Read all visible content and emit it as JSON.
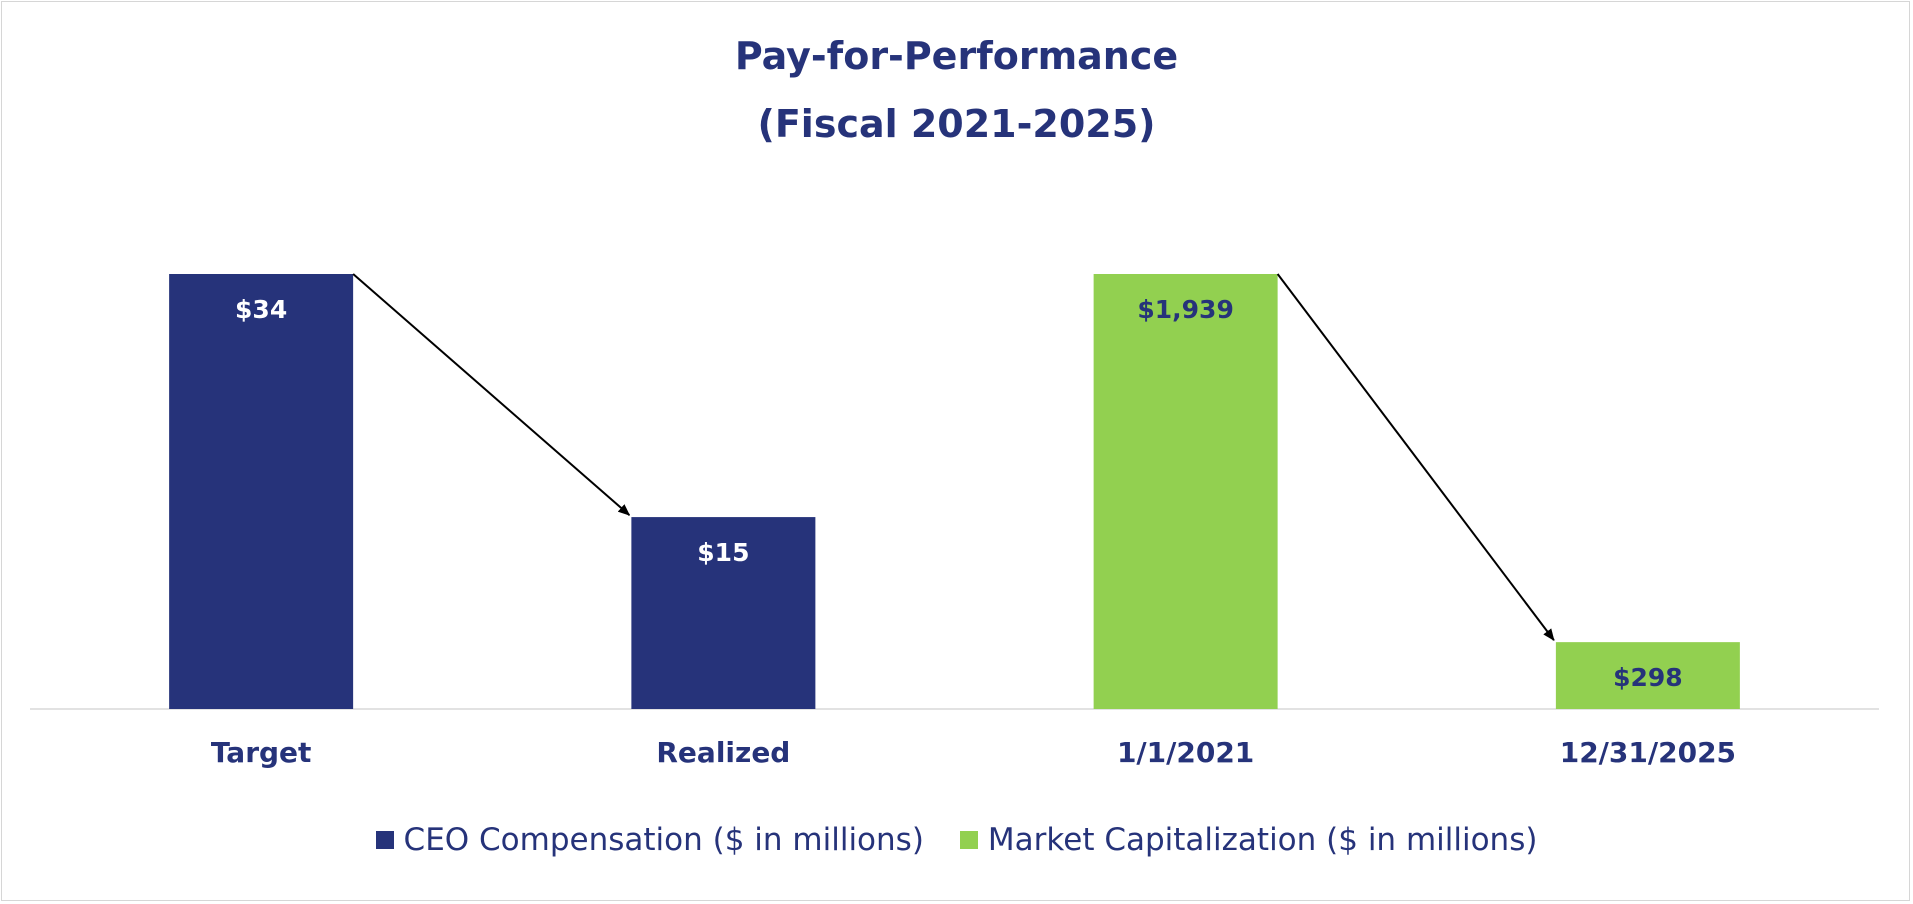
{
  "chart_data": {
    "type": "bar",
    "title": "Pay-for-Performance",
    "subtitle": "(Fiscal 2021-2025)",
    "categories": [
      "Target",
      "Realized",
      "1/1/2021",
      "12/31/2025"
    ],
    "series": [
      {
        "name": "CEO Compensation ($ in millions)",
        "color": "#26337a",
        "label_color": "#ffffff",
        "points": [
          {
            "category": "Target",
            "value": 34,
            "label": "$34"
          },
          {
            "category": "Realized",
            "value": 15,
            "label": "$15"
          }
        ]
      },
      {
        "name": "Market Capitalization ($ in millions)",
        "color": "#92d050",
        "label_color": "#26337a",
        "points": [
          {
            "category": "1/1/2021",
            "value": 1939,
            "label": "$1,939"
          },
          {
            "category": "12/31/2025",
            "value": 298,
            "label": "$298"
          }
        ]
      }
    ],
    "arrows": [
      {
        "from": "Target",
        "to": "Realized"
      },
      {
        "from": "1/1/2021",
        "to": "12/31/2025"
      }
    ],
    "legend_position": "bottom",
    "grid": false
  }
}
